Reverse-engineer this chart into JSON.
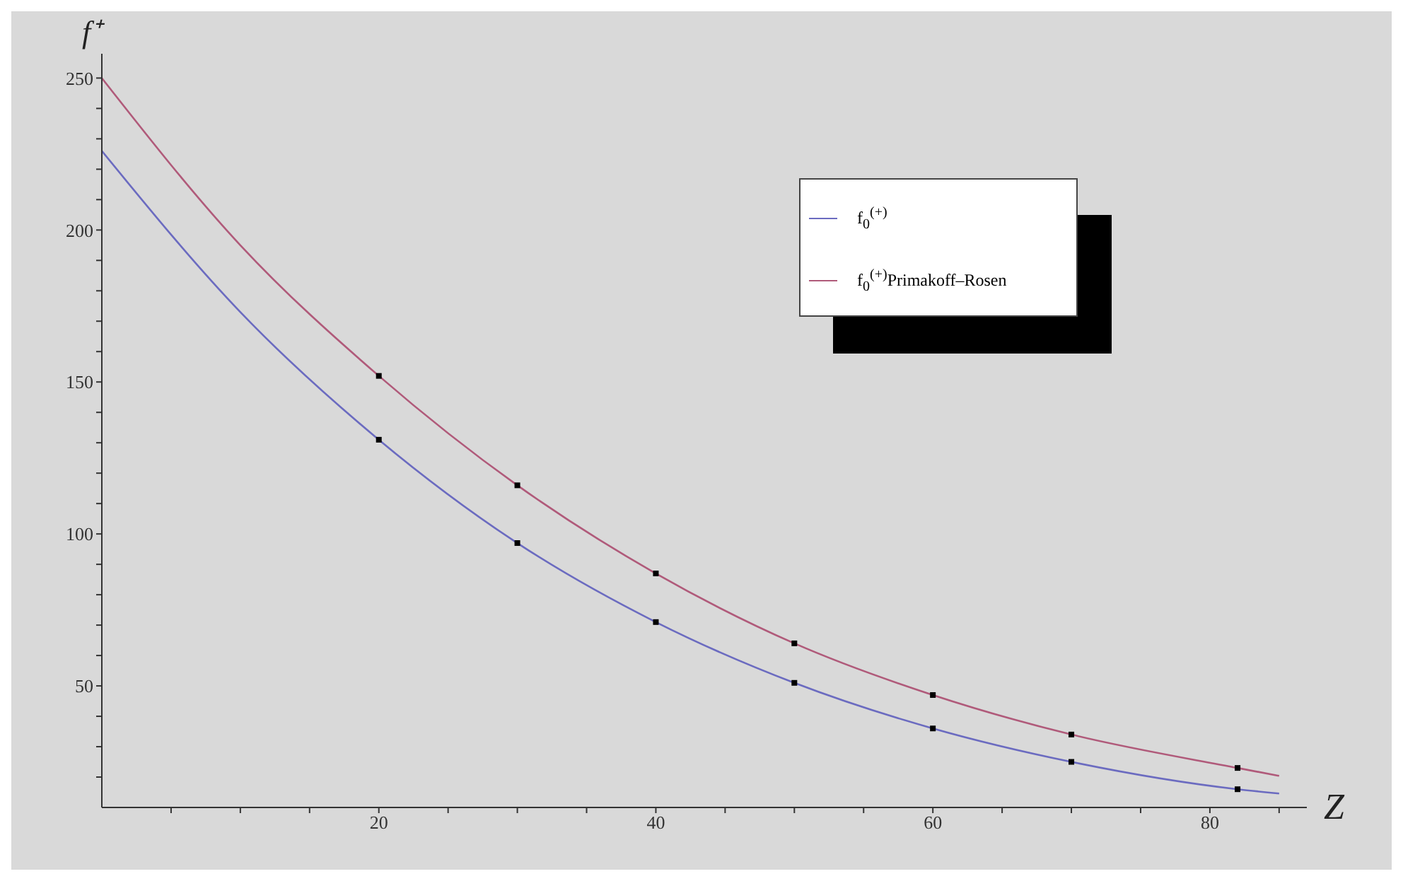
{
  "chart_data": {
    "type": "line",
    "xlabel": "Z",
    "ylabel": "f⁺",
    "xlim": [
      0,
      87
    ],
    "ylim": [
      10,
      258
    ],
    "xticks": [
      {
        "value": 5,
        "label": null
      },
      {
        "value": 10,
        "label": null
      },
      {
        "value": 15,
        "label": null
      },
      20,
      {
        "value": 25,
        "label": null
      },
      {
        "value": 30,
        "label": null
      },
      {
        "value": 35,
        "label": null
      },
      40,
      {
        "value": 45,
        "label": null
      },
      {
        "value": 50,
        "label": null
      },
      {
        "value": 55,
        "label": null
      },
      60,
      {
        "value": 65,
        "label": null
      },
      {
        "value": 70,
        "label": null
      },
      {
        "value": 75,
        "label": null
      },
      80,
      {
        "value": 85,
        "label": null
      }
    ],
    "yticks": [
      {
        "value": 20,
        "label": null
      },
      {
        "value": 30,
        "label": null
      },
      {
        "value": 40,
        "label": null
      },
      50,
      {
        "value": 60,
        "label": null
      },
      {
        "value": 70,
        "label": null
      },
      {
        "value": 80,
        "label": null
      },
      {
        "value": 90,
        "label": null
      },
      100,
      {
        "value": 110,
        "label": null
      },
      {
        "value": 120,
        "label": null
      },
      {
        "value": 130,
        "label": null
      },
      {
        "value": 140,
        "label": null
      },
      150,
      {
        "value": 160,
        "label": null
      },
      {
        "value": 170,
        "label": null
      },
      {
        "value": 180,
        "label": null
      },
      {
        "value": 190,
        "label": null
      },
      200,
      {
        "value": 210,
        "label": null
      },
      {
        "value": 220,
        "label": null
      },
      {
        "value": 230,
        "label": null
      },
      {
        "value": 240,
        "label": null
      },
      250
    ],
    "grid": false,
    "legend": "top right",
    "marker": "none",
    "line_style": "solid",
    "series": [
      {
        "name": "f$_{0}$$^{(+)}$",
        "color": "#6b6bc0",
        "x": [
          0,
          10,
          20,
          30,
          40,
          50,
          60,
          70,
          82,
          85
        ],
        "values": [
          226,
          173,
          131,
          97,
          71,
          51,
          36,
          25,
          16,
          14.6
        ]
      },
      {
        "name": "f$_{0}$$^{(+)}$Primakoff–Rosen",
        "color": "#b05a7a",
        "x": [
          0,
          10,
          20,
          30,
          40,
          50,
          60,
          70,
          82,
          85
        ],
        "values": [
          250,
          195,
          152,
          116,
          87,
          64,
          47,
          34,
          23,
          20.4
        ]
      },
      {
        "type": "scatter",
        "marker": "square",
        "color": "#000000",
        "x": [
          20,
          30,
          40,
          50,
          60,
          70,
          82
        ],
        "values": [
          131,
          97,
          71,
          51,
          36,
          25,
          16
        ]
      },
      {
        "type": "scatter",
        "marker": "square",
        "color": "#000000",
        "x": [
          20,
          30,
          40,
          50,
          60,
          70,
          82
        ],
        "values": [
          152,
          116,
          87,
          64,
          47,
          34,
          23
        ]
      }
    ]
  }
}
